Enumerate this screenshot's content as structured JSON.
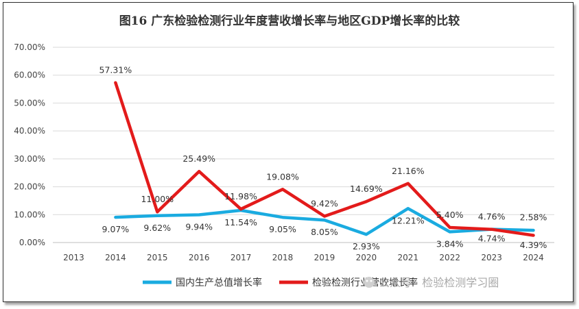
{
  "chart_data": {
    "type": "line",
    "title": "图16 广东检验检测行业年度营收增长率与地区GDP增长率的比较",
    "categories": [
      "2013",
      "2014",
      "2015",
      "2016",
      "2017",
      "2018",
      "2019",
      "2020",
      "2021",
      "2022",
      "2023",
      "2024"
    ],
    "y_ticks": [
      "0.00%",
      "10.00%",
      "20.00%",
      "30.00%",
      "40.00%",
      "50.00%",
      "60.00%",
      "70.00%"
    ],
    "ylim": [
      0,
      70
    ],
    "grid": true,
    "legend_position": "bottom",
    "series": [
      {
        "name": "国内生产总值增长率",
        "color": "#1aabe0",
        "values": [
          null,
          9.07,
          9.62,
          9.94,
          11.54,
          9.05,
          8.05,
          2.93,
          12.21,
          3.84,
          4.76,
          4.39
        ],
        "labels": [
          "",
          "9.07%",
          "9.62%",
          "9.94%",
          "11.54%",
          "9.05%",
          "8.05%",
          "2.93%",
          "12.21%",
          "3.84%",
          "4.76%",
          "4.39%"
        ]
      },
      {
        "name": "检验检测行业营收增长率",
        "color": "#e31b1b",
        "values": [
          null,
          57.31,
          11.0,
          25.49,
          11.98,
          19.08,
          9.42,
          14.69,
          21.16,
          5.4,
          4.74,
          2.58
        ],
        "labels": [
          "",
          "57.31%",
          "11.00%",
          "25.49%",
          "11.98%",
          "19.08%",
          "9.42%",
          "14.69%",
          "21.16%",
          "5.40%",
          "4.74%",
          "2.58%"
        ]
      }
    ]
  },
  "watermark": "公众号 · 检验检测学习圈"
}
